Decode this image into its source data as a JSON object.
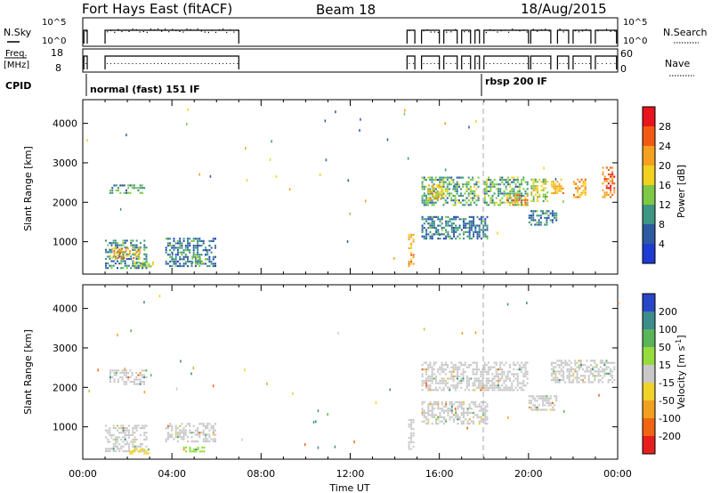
{
  "header": {
    "title": "Fort Hays East (fitACF)",
    "beam": "Beam 18",
    "date": "18/Aug/2015"
  },
  "top_panels": {
    "nsky_label": "N.Sky",
    "nsky_ticks": [
      "10^5",
      "10^0"
    ],
    "nsearch_label": "N.Search",
    "nsearch_ticks": [
      "10^5",
      "10^0"
    ],
    "freq_label_1": "Freq.",
    "freq_label_2": "[MHz]",
    "freq_ticks": [
      "18",
      "8"
    ],
    "nave_label": "Nave",
    "nave_ticks": [
      "60",
      "0"
    ],
    "cpid_label": "CPID",
    "cpid_1": "normal (fast) 151 IF",
    "cpid_2": "rbsp 200 IF"
  },
  "axes": {
    "ylabel": "Slant Range [km]",
    "xlabel": "Time UT",
    "yticks": [
      "4000",
      "3000",
      "2000",
      "1000"
    ],
    "xticks": [
      "00:00",
      "04:00",
      "08:00",
      "12:00",
      "16:00",
      "20:00",
      "00:00"
    ]
  },
  "colorbars": {
    "power_label": "Power [dB]",
    "power_ticks": [
      "28",
      "24",
      "20",
      "16",
      "12",
      "8",
      "4"
    ],
    "power_colors": [
      "#e8141e",
      "#f25a14",
      "#f5a01e",
      "#f0d21e",
      "#7ec846",
      "#3c9682",
      "#2d5aa0",
      "#1e3cd2"
    ],
    "velocity_label": "Velocity [m s",
    "velocity_sup": "-1",
    "velocity_close": "]",
    "velocity_ticks": [
      "200",
      "100",
      "50",
      "15",
      "-15",
      "-50",
      "-100",
      "-200"
    ],
    "velocity_colors": [
      "#2846c8",
      "#3c8c8c",
      "#5ab45a",
      "#96dc3c",
      "#c8c8c8",
      "#f0d228",
      "#f0a01e",
      "#f06414",
      "#e61e1e"
    ]
  },
  "chart_data": {
    "type": "heatmap",
    "title": "Fort Hays East (fitACF)",
    "xlabel": "Time UT",
    "ylabel": "Slant Range [km]",
    "xlim": [
      0,
      24
    ],
    "ylim": [
      180,
      4600
    ],
    "power_range": [
      0,
      32
    ],
    "velocity_range": [
      -250,
      250
    ],
    "power_patches": [
      {
        "t0": 1.0,
        "t1": 2.9,
        "r0": 300,
        "r1": 1050,
        "p": 9
      },
      {
        "t0": 1.2,
        "t1": 2.9,
        "r0": 2200,
        "r1": 2450,
        "p": 11
      },
      {
        "t0": 1.2,
        "t1": 2.6,
        "r0": 550,
        "r1": 850,
        "p": 21
      },
      {
        "t0": 2.3,
        "t1": 3.2,
        "r0": 350,
        "r1": 500,
        "p": 15
      },
      {
        "t0": 3.7,
        "t1": 6.0,
        "r0": 350,
        "r1": 1100,
        "p": 8
      },
      {
        "t0": 4.8,
        "t1": 5.4,
        "r0": 450,
        "r1": 650,
        "p": 14
      },
      {
        "t0": 14.6,
        "t1": 14.9,
        "r0": 350,
        "r1": 1200,
        "p": 22
      },
      {
        "t0": 15.2,
        "t1": 17.8,
        "r0": 1900,
        "r1": 2650,
        "p": 12
      },
      {
        "t0": 15.5,
        "t1": 16.2,
        "r0": 2050,
        "r1": 2450,
        "p": 19
      },
      {
        "t0": 15.2,
        "t1": 18.2,
        "r0": 1050,
        "r1": 1650,
        "p": 8
      },
      {
        "t0": 18.0,
        "t1": 20.0,
        "r0": 1900,
        "r1": 2650,
        "p": 12
      },
      {
        "t0": 19.0,
        "t1": 20.0,
        "r0": 1900,
        "r1": 2200,
        "p": 21
      },
      {
        "t0": 20.0,
        "t1": 21.3,
        "r0": 1400,
        "r1": 1800,
        "p": 8
      },
      {
        "t0": 20.1,
        "t1": 20.9,
        "r0": 2000,
        "r1": 2600,
        "p": 16
      },
      {
        "t0": 21.0,
        "t1": 21.6,
        "r0": 2200,
        "r1": 2600,
        "p": 20
      },
      {
        "t0": 22.0,
        "t1": 22.6,
        "r0": 2100,
        "r1": 2600,
        "p": 21
      },
      {
        "t0": 23.3,
        "t1": 23.9,
        "r0": 2100,
        "r1": 2900,
        "p": 25
      }
    ],
    "velocity_patches": [
      {
        "t0": 1.0,
        "t1": 2.9,
        "r0": 350,
        "r1": 1050,
        "v": 0
      },
      {
        "t0": 1.2,
        "t1": 2.9,
        "r0": 2050,
        "r1": 2450,
        "v": 0
      },
      {
        "t0": 2.0,
        "t1": 3.0,
        "r0": 300,
        "r1": 450,
        "v": -40
      },
      {
        "t0": 3.7,
        "t1": 6.0,
        "r0": 600,
        "r1": 1100,
        "v": 0
      },
      {
        "t0": 4.5,
        "t1": 5.5,
        "r0": 350,
        "r1": 500,
        "v": 40
      },
      {
        "t0": 14.6,
        "t1": 14.9,
        "r0": 350,
        "r1": 1200,
        "v": 0
      },
      {
        "t0": 15.2,
        "t1": 20.0,
        "r0": 1900,
        "r1": 2650,
        "v": 0
      },
      {
        "t0": 15.2,
        "t1": 18.2,
        "r0": 1050,
        "r1": 1650,
        "v": 0
      },
      {
        "t0": 20.0,
        "t1": 21.3,
        "r0": 1400,
        "r1": 1800,
        "v": 0
      },
      {
        "t0": 21.0,
        "t1": 23.9,
        "r0": 2100,
        "r1": 2700,
        "v": 0
      }
    ],
    "operating_intervals": [
      [
        0.05,
        0.2
      ],
      [
        1.0,
        7.0
      ],
      [
        14.55,
        14.9
      ],
      [
        15.2,
        16.0
      ],
      [
        16.2,
        16.8
      ],
      [
        17.0,
        17.4
      ],
      [
        17.6,
        17.8
      ],
      [
        18.0,
        20.0
      ],
      [
        20.1,
        21.0
      ],
      [
        21.3,
        21.8
      ],
      [
        22.0,
        22.8
      ],
      [
        23.0,
        23.95
      ]
    ],
    "frequency": {
      "freq_mhz_min": 8,
      "freq_mhz_max": 18
    },
    "mode_change_time": 18.0
  }
}
